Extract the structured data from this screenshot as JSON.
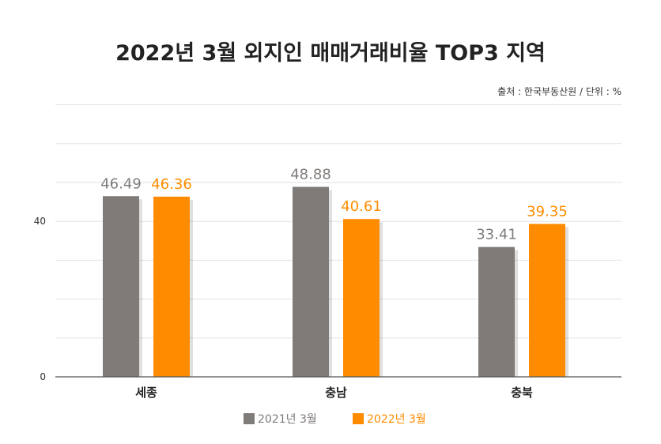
{
  "chart_data": {
    "type": "bar",
    "title": "2022년 3월 외지인 매매거래비율 TOP3 지역",
    "source": "출처 : 한국부동산원 / 단위 : %",
    "categories": [
      "세종",
      "충남",
      "충북"
    ],
    "series": [
      {
        "name": "2021년 3월",
        "values": [
          46.49,
          48.88,
          33.41
        ],
        "value_labels": [
          "46.49",
          "48.88",
          "33.41"
        ],
        "color": "#7f7b79"
      },
      {
        "name": "2022년 3월",
        "values": [
          46.36,
          40.61,
          39.35
        ],
        "value_labels": [
          "46.36",
          "40.61",
          "39.35"
        ],
        "color": "#ff8c00"
      }
    ],
    "y_tick_labels": [
      "0",
      "40"
    ],
    "xlabel": "",
    "ylabel": "",
    "grid": true,
    "legend": "bottom-center"
  },
  "colors": {
    "series_2021": "#7f7b79",
    "series_2022": "#ff8c00",
    "grid": "#e2e2e2",
    "axis": "#555555",
    "title": "#222222"
  }
}
